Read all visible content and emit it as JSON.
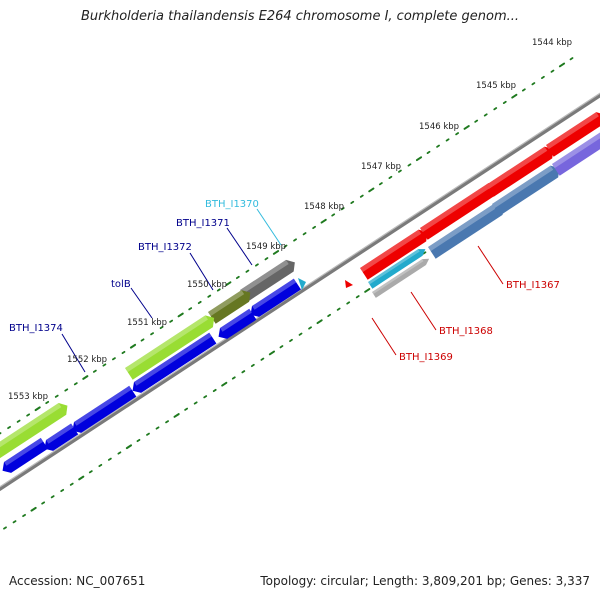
{
  "title": "Burkholderia thailandensis E264 chromosome I, complete genom...",
  "footer": {
    "accession": "Accession: NC_007651",
    "stats": "Topology: circular; Length: 3,809,201 bp; Genes: 3,337"
  },
  "ticks": [
    "1544 kbp",
    "1545 kbp",
    "1546 kbp",
    "1547 kbp",
    "1548 kbp",
    "1549 kbp",
    "1550 kbp",
    "1551 kbp",
    "1552 kbp",
    "1553 kbp"
  ],
  "gene_labels": [
    {
      "text": "BTH_I1370",
      "color": "#33bbdd"
    },
    {
      "text": "BTH_I1371",
      "color": "#00008b"
    },
    {
      "text": "BTH_I1372",
      "color": "#00008b"
    },
    {
      "text": "tolB",
      "color": "#00008b"
    },
    {
      "text": "BTH_I1374",
      "color": "#00008b"
    },
    {
      "text": "BTH_I1367",
      "color": "#cc0000"
    },
    {
      "text": "BTH_I1368",
      "color": "#cc0000"
    },
    {
      "text": "BTH_I1369",
      "color": "#cc0000"
    }
  ],
  "colors": {
    "backbone": "#7a7a7a",
    "tick_green": "#1f7a1f",
    "cds_blue": "#0000dd",
    "cds_red": "#ee0000",
    "steel_blue": "#4a78b0",
    "lime": "#99dd33",
    "olive": "#667722",
    "gray": "#666666",
    "cyan": "#22aacc",
    "purple": "#7766dd"
  }
}
